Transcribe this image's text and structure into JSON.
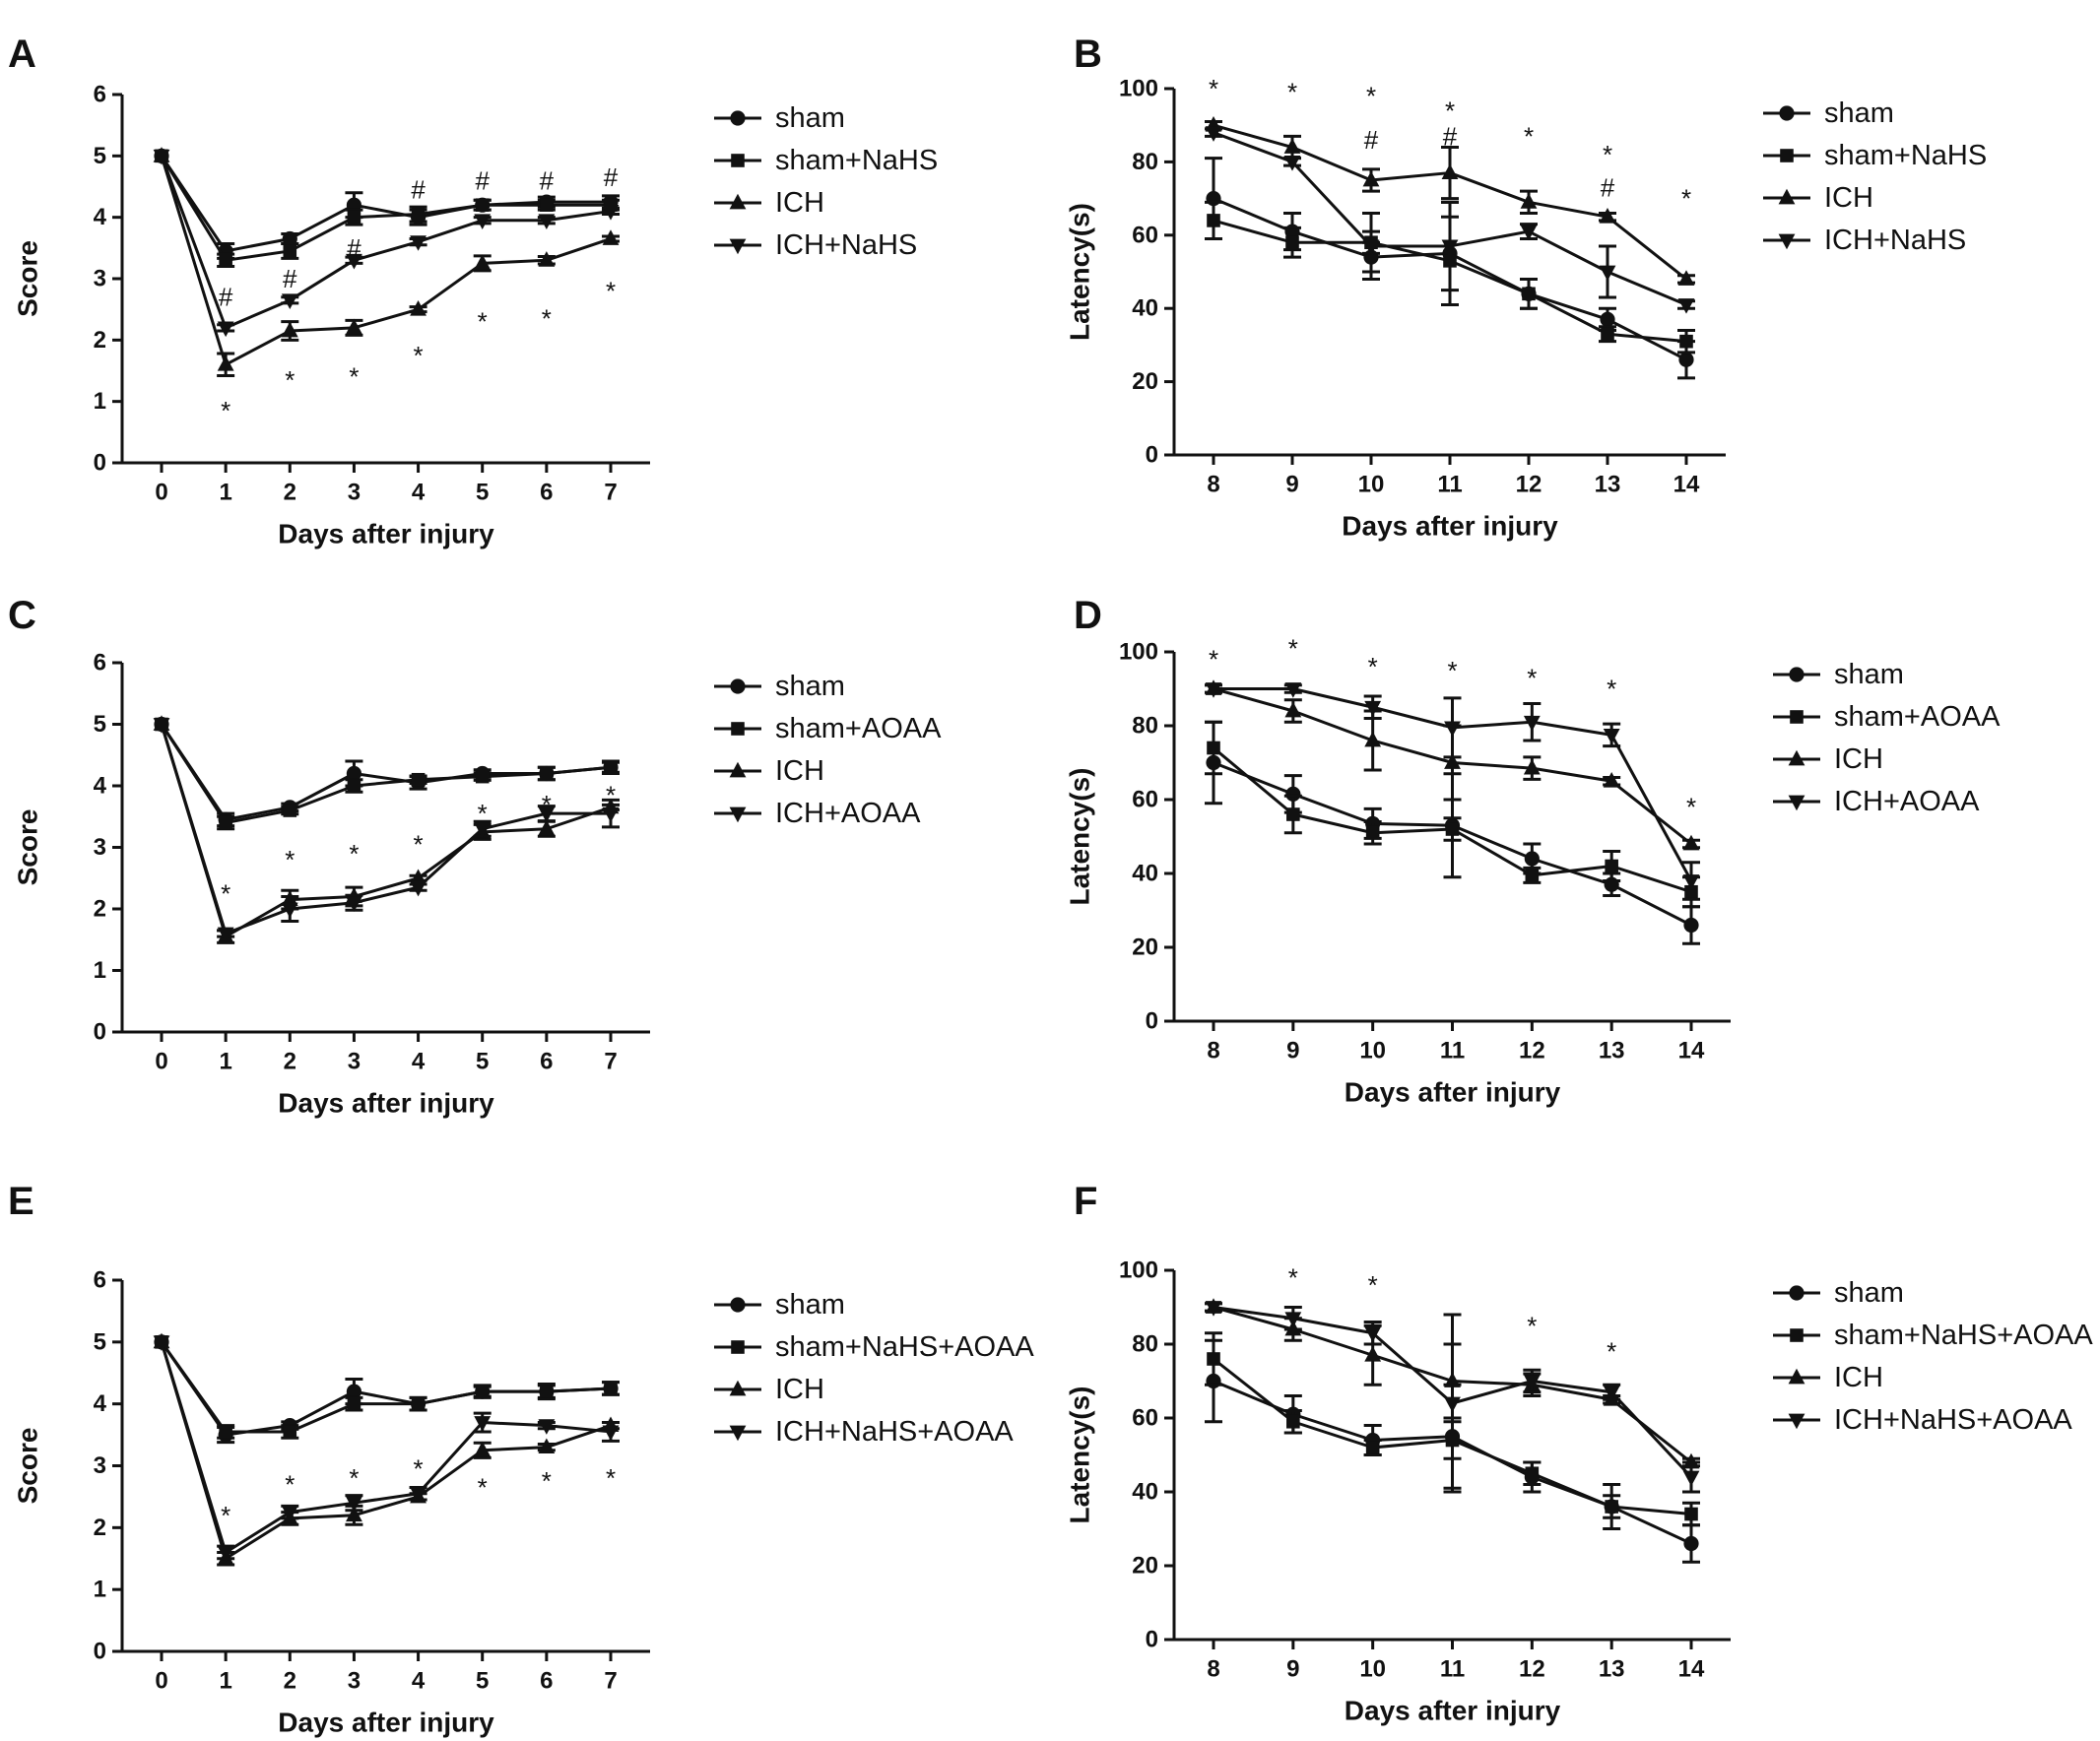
{
  "colors": {
    "ink": "#111111",
    "background": "#ffffff"
  },
  "chart_data": [
    {
      "id": "A",
      "panel_label": "A",
      "type": "line",
      "xlabel": "Days after injury",
      "ylabel": "Score",
      "x": [
        0,
        1,
        2,
        3,
        4,
        5,
        6,
        7
      ],
      "xlim": [
        0,
        7
      ],
      "ylim": [
        0,
        6
      ],
      "yticks": [
        0,
        1,
        2,
        3,
        4,
        5,
        6
      ],
      "legend_position": "right",
      "series": [
        {
          "name": "sham",
          "marker": "circle",
          "values": [
            5,
            3.45,
            3.65,
            4.2,
            4.0,
            4.2,
            4.25,
            4.25
          ],
          "errors": [
            0,
            0.12,
            0.08,
            0.2,
            0.12,
            0.08,
            0.08,
            0.1
          ]
        },
        {
          "name": "sham+NaHS",
          "marker": "square",
          "values": [
            5,
            3.3,
            3.45,
            4.0,
            4.05,
            4.2,
            4.2,
            4.2
          ],
          "errors": [
            0,
            0.1,
            0.12,
            0.12,
            0.12,
            0.08,
            0.08,
            0.08
          ]
        },
        {
          "name": "ICH",
          "marker": "triangle-up",
          "values": [
            5,
            1.6,
            2.15,
            2.2,
            2.5,
            3.25,
            3.3,
            3.65
          ],
          "errors": [
            0,
            0.18,
            0.15,
            0.12,
            0.04,
            0.12,
            0.06,
            0.04
          ]
        },
        {
          "name": "ICH+NaHS",
          "marker": "triangle-down",
          "values": [
            5,
            2.2,
            2.65,
            3.3,
            3.6,
            3.95,
            3.95,
            4.1
          ],
          "errors": [
            0,
            0.05,
            0.05,
            0.05,
            0.05,
            0.05,
            0.05,
            0.05
          ]
        }
      ],
      "annotations": [
        {
          "x": 1,
          "y": 0.85,
          "text": "*"
        },
        {
          "x": 2,
          "y": 1.35,
          "text": "*"
        },
        {
          "x": 3,
          "y": 1.4,
          "text": "*"
        },
        {
          "x": 4,
          "y": 1.75,
          "text": "*"
        },
        {
          "x": 5,
          "y": 2.3,
          "text": "*"
        },
        {
          "x": 6,
          "y": 2.35,
          "text": "*"
        },
        {
          "x": 7,
          "y": 2.8,
          "text": "*"
        },
        {
          "x": 1,
          "y": 2.7,
          "text": "#"
        },
        {
          "x": 2,
          "y": 3.0,
          "text": "#"
        },
        {
          "x": 3,
          "y": 3.5,
          "text": "#"
        },
        {
          "x": 4,
          "y": 4.45,
          "text": "#"
        },
        {
          "x": 5,
          "y": 4.6,
          "text": "#"
        },
        {
          "x": 6,
          "y": 4.6,
          "text": "#"
        },
        {
          "x": 7,
          "y": 4.65,
          "text": "#"
        }
      ]
    },
    {
      "id": "B",
      "panel_label": "B",
      "type": "line",
      "xlabel": "Days after injury",
      "ylabel": "Latency(s)",
      "x": [
        8,
        9,
        10,
        11,
        12,
        13,
        14
      ],
      "xlim": [
        8,
        14
      ],
      "ylim": [
        0,
        100
      ],
      "yticks": [
        0,
        20,
        40,
        60,
        80,
        100
      ],
      "legend_position": "right",
      "series": [
        {
          "name": "sham",
          "marker": "circle",
          "values": [
            70,
            61,
            54,
            55,
            44,
            37,
            26
          ],
          "errors": [
            11,
            5,
            4,
            14,
            4,
            3,
            5
          ]
        },
        {
          "name": "sham+NaHS",
          "marker": "square",
          "values": [
            64,
            58,
            58,
            53,
            44,
            33,
            31
          ],
          "errors": [
            5,
            4,
            3,
            12,
            4,
            2,
            3
          ]
        },
        {
          "name": "ICH",
          "marker": "triangle-up",
          "values": [
            90,
            84,
            75,
            77,
            69,
            65,
            48
          ],
          "errors": [
            1,
            3,
            3,
            7,
            3,
            1,
            1
          ]
        },
        {
          "name": "ICH+NaHS",
          "marker": "triangle-down",
          "values": [
            88,
            80,
            57,
            57,
            61,
            50,
            41
          ],
          "errors": [
            1,
            1,
            9,
            12,
            2,
            7,
            1
          ]
        }
      ],
      "annotations": [
        {
          "x": 8,
          "y": 100,
          "text": "*"
        },
        {
          "x": 9,
          "y": 99,
          "text": "*"
        },
        {
          "x": 10,
          "y": 98,
          "text": "*"
        },
        {
          "x": 11,
          "y": 94,
          "text": "*"
        },
        {
          "x": 12,
          "y": 87,
          "text": "*"
        },
        {
          "x": 13,
          "y": 82,
          "text": "*"
        },
        {
          "x": 14,
          "y": 70,
          "text": "*"
        },
        {
          "x": 10,
          "y": 86,
          "text": "#"
        },
        {
          "x": 11,
          "y": 87,
          "text": "#"
        },
        {
          "x": 13,
          "y": 73,
          "text": "#"
        }
      ]
    },
    {
      "id": "C",
      "panel_label": "C",
      "type": "line",
      "xlabel": "Days after injury",
      "ylabel": "Score",
      "x": [
        0,
        1,
        2,
        3,
        4,
        5,
        6,
        7
      ],
      "xlim": [
        0,
        7
      ],
      "ylim": [
        0,
        6
      ],
      "yticks": [
        0,
        1,
        2,
        3,
        4,
        5,
        6
      ],
      "legend_position": "right",
      "series": [
        {
          "name": "sham",
          "marker": "circle",
          "values": [
            5,
            3.45,
            3.65,
            4.2,
            4.05,
            4.2,
            4.2,
            4.3
          ],
          "errors": [
            0,
            0.1,
            0.06,
            0.2,
            0.1,
            0.06,
            0.1,
            0.1
          ]
        },
        {
          "name": "sham+AOAA",
          "marker": "square",
          "values": [
            5,
            3.4,
            3.6,
            4.0,
            4.1,
            4.15,
            4.2,
            4.3
          ],
          "errors": [
            0,
            0.1,
            0.06,
            0.1,
            0.06,
            0.06,
            0.1,
            0.08
          ]
        },
        {
          "name": "ICH",
          "marker": "triangle-up",
          "values": [
            5,
            1.55,
            2.15,
            2.2,
            2.5,
            3.25,
            3.3,
            3.65
          ],
          "errors": [
            0,
            0.1,
            0.15,
            0.15,
            0.04,
            0.12,
            0.12,
            0.04
          ]
        },
        {
          "name": "ICH+AOAA",
          "marker": "triangle-down",
          "values": [
            5,
            1.6,
            2.0,
            2.1,
            2.35,
            3.3,
            3.55,
            3.55
          ],
          "errors": [
            0,
            0.05,
            0.2,
            0.12,
            0.05,
            0.12,
            0.12,
            0.22
          ]
        }
      ],
      "annotations": [
        {
          "x": 1,
          "y": 2.25,
          "text": "*"
        },
        {
          "x": 2,
          "y": 2.8,
          "text": "*"
        },
        {
          "x": 3,
          "y": 2.9,
          "text": "*"
        },
        {
          "x": 4,
          "y": 3.05,
          "text": "*"
        },
        {
          "x": 5,
          "y": 3.55,
          "text": "*"
        },
        {
          "x": 6,
          "y": 3.7,
          "text": "*"
        },
        {
          "x": 7,
          "y": 3.85,
          "text": "*"
        }
      ]
    },
    {
      "id": "D",
      "panel_label": "D",
      "type": "line",
      "xlabel": "Days after injury",
      "ylabel": "Latency(s)",
      "x": [
        8,
        9,
        10,
        11,
        12,
        13,
        14
      ],
      "xlim": [
        8,
        14
      ],
      "ylim": [
        0,
        100
      ],
      "yticks": [
        0,
        20,
        40,
        60,
        80,
        100
      ],
      "legend_position": "right",
      "series": [
        {
          "name": "sham",
          "marker": "circle",
          "values": [
            70,
            61.5,
            53.5,
            53,
            44,
            37,
            26
          ],
          "errors": [
            11,
            5,
            4,
            14,
            4,
            3,
            5
          ]
        },
        {
          "name": "sham+AOAA",
          "marker": "square",
          "values": [
            74,
            56,
            51,
            52,
            39.5,
            42,
            35
          ],
          "errors": [
            7,
            5,
            3,
            3,
            2,
            4,
            4
          ]
        },
        {
          "name": "ICH",
          "marker": "triangle-up",
          "values": [
            90,
            84,
            76,
            70,
            68.5,
            65,
            48
          ],
          "errors": [
            1,
            3,
            8,
            10,
            3,
            1,
            1
          ]
        },
        {
          "name": "ICH+AOAA",
          "marker": "triangle-down",
          "values": [
            90,
            90,
            85,
            79.5,
            81,
            77.5,
            38
          ],
          "errors": [
            1,
            1,
            3,
            8,
            5,
            3,
            5
          ]
        }
      ],
      "annotations": [
        {
          "x": 8,
          "y": 98,
          "text": "*"
        },
        {
          "x": 9,
          "y": 101,
          "text": "*"
        },
        {
          "x": 10,
          "y": 96,
          "text": "*"
        },
        {
          "x": 11,
          "y": 95,
          "text": "*"
        },
        {
          "x": 12,
          "y": 93,
          "text": "*"
        },
        {
          "x": 13,
          "y": 90,
          "text": "*"
        },
        {
          "x": 14,
          "y": 58,
          "text": "*"
        }
      ]
    },
    {
      "id": "E",
      "panel_label": "E",
      "type": "line",
      "xlabel": "Days after injury",
      "ylabel": "Score",
      "x": [
        0,
        1,
        2,
        3,
        4,
        5,
        6,
        7
      ],
      "xlim": [
        0,
        7
      ],
      "ylim": [
        0,
        6
      ],
      "yticks": [
        0,
        1,
        2,
        3,
        4,
        5,
        6
      ],
      "legend_position": "right",
      "series": [
        {
          "name": "sham",
          "marker": "circle",
          "values": [
            5,
            3.5,
            3.65,
            4.2,
            4.0,
            4.2,
            4.2,
            4.25
          ],
          "errors": [
            0,
            0.12,
            0.06,
            0.2,
            0.1,
            0.1,
            0.1,
            0.1
          ]
        },
        {
          "name": "sham+NaHS+AOAA",
          "marker": "square",
          "values": [
            5,
            3.55,
            3.55,
            4.0,
            4.0,
            4.2,
            4.2,
            4.25
          ],
          "errors": [
            0,
            0.1,
            0.1,
            0.1,
            0.1,
            0.08,
            0.12,
            0.1
          ]
        },
        {
          "name": "ICH",
          "marker": "triangle-up",
          "values": [
            5,
            1.5,
            2.15,
            2.2,
            2.5,
            3.25,
            3.3,
            3.65
          ],
          "errors": [
            0,
            0.1,
            0.1,
            0.15,
            0.05,
            0.12,
            0.05,
            0.05
          ]
        },
        {
          "name": "ICH+NaHS+AOAA",
          "marker": "triangle-down",
          "values": [
            5,
            1.6,
            2.25,
            2.4,
            2.55,
            3.7,
            3.65,
            3.55
          ],
          "errors": [
            0,
            0.1,
            0.1,
            0.12,
            0.1,
            0.15,
            0.05,
            0.15
          ]
        }
      ],
      "annotations": [
        {
          "x": 1,
          "y": 2.2,
          "text": "*"
        },
        {
          "x": 2,
          "y": 2.7,
          "text": "*"
        },
        {
          "x": 3,
          "y": 2.8,
          "text": "*"
        },
        {
          "x": 4,
          "y": 2.95,
          "text": "*"
        },
        {
          "x": 5,
          "y": 2.65,
          "text": "*"
        },
        {
          "x": 6,
          "y": 2.75,
          "text": "*"
        },
        {
          "x": 7,
          "y": 2.8,
          "text": "*"
        }
      ]
    },
    {
      "id": "F",
      "panel_label": "F",
      "type": "line",
      "xlabel": "Days after injury",
      "ylabel": "Latency(s)",
      "x": [
        8,
        9,
        10,
        11,
        12,
        13,
        14
      ],
      "xlim": [
        8,
        14
      ],
      "ylim": [
        0,
        100
      ],
      "yticks": [
        0,
        20,
        40,
        60,
        80,
        100
      ],
      "legend_position": "right",
      "series": [
        {
          "name": "sham",
          "marker": "circle",
          "values": [
            70,
            61,
            54,
            55,
            44,
            36,
            26
          ],
          "errors": [
            11,
            5,
            4,
            14,
            4,
            3,
            5
          ]
        },
        {
          "name": "sham+NaHS+AOAA",
          "marker": "square",
          "values": [
            76,
            59,
            52,
            54,
            45,
            36,
            34
          ],
          "errors": [
            7,
            3,
            2,
            5,
            3,
            6,
            3
          ]
        },
        {
          "name": "ICH",
          "marker": "triangle-up",
          "values": [
            90,
            84,
            77,
            70,
            69,
            65,
            48
          ],
          "errors": [
            1,
            3,
            8,
            10,
            3,
            1,
            1
          ]
        },
        {
          "name": "ICH+NaHS+AOAA",
          "marker": "triangle-down",
          "values": [
            90,
            87,
            83,
            64,
            70,
            67,
            44
          ],
          "errors": [
            1,
            3,
            3,
            24,
            3,
            2,
            4
          ]
        }
      ],
      "annotations": [
        {
          "x": 9,
          "y": 98,
          "text": "*"
        },
        {
          "x": 10,
          "y": 96,
          "text": "*"
        },
        {
          "x": 12,
          "y": 85,
          "text": "*"
        },
        {
          "x": 13,
          "y": 78,
          "text": "*"
        }
      ]
    }
  ]
}
